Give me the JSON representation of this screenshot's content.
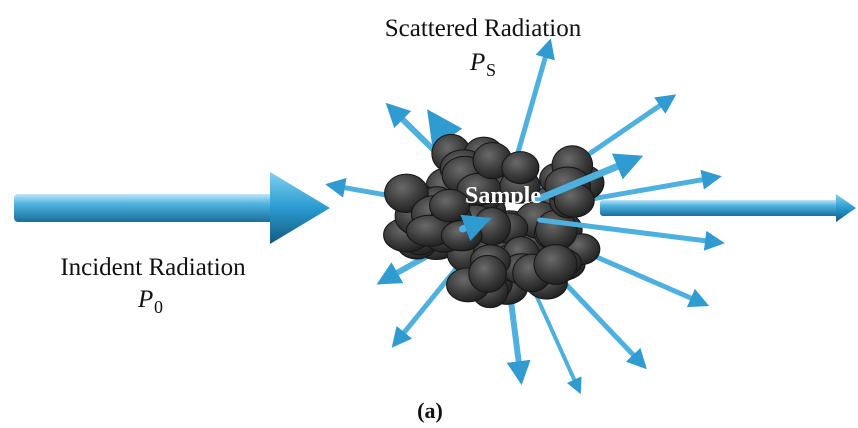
{
  "labels": {
    "scattered": {
      "text": "Scattered Radiation",
      "symbol": "P",
      "subscript": "S"
    },
    "incident": {
      "text": "Incident Radiation",
      "symbol": "P",
      "subscript": "0"
    },
    "sample": "Sample",
    "caption": "(a)"
  }
}
